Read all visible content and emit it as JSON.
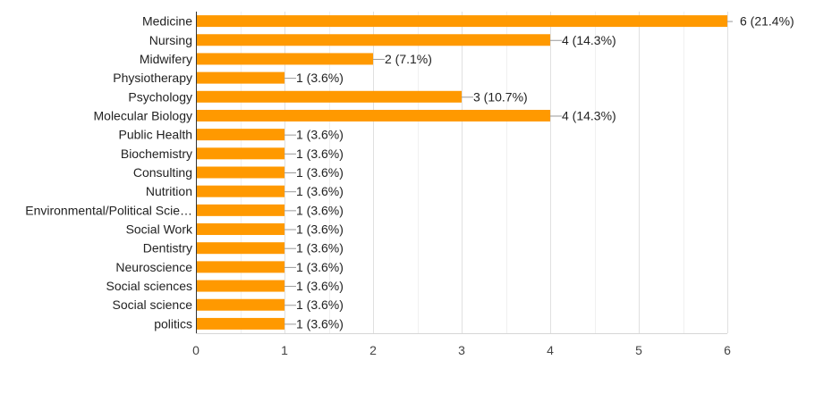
{
  "chart_data": {
    "type": "bar",
    "orientation": "horizontal",
    "categories": [
      "Medicine",
      "Nursing",
      "Midwifery",
      "Physiotherapy",
      "Psychology",
      "Molecular Biology",
      "Public Health",
      "Biochemistry",
      "Consulting",
      "Nutrition",
      "Environmental/Political Scie…",
      "Social Work",
      "Dentistry",
      "Neuroscience",
      "Social sciences",
      "Social science",
      "politics"
    ],
    "values": [
      6,
      4,
      2,
      1,
      3,
      4,
      1,
      1,
      1,
      1,
      1,
      1,
      1,
      1,
      1,
      1,
      1
    ],
    "data_labels": [
      "6 (21.4%)",
      "4 (14.3%)",
      "2 (7.1%)",
      "1 (3.6%)",
      "3 (10.7%)",
      "4 (14.3%)",
      "1 (3.6%)",
      "1 (3.6%)",
      "1 (3.6%)",
      "1 (3.6%)",
      "1 (3.6%)",
      "1 (3.6%)",
      "1 (3.6%)",
      "1 (3.6%)",
      "1 (3.6%)",
      "1 (3.6%)",
      "1 (3.6%)"
    ],
    "xlim": [
      0,
      6
    ],
    "x_ticks": [
      0,
      1,
      2,
      3,
      4,
      5,
      6
    ],
    "grid": true,
    "legend": "none",
    "bar_color": "#ff9900",
    "title": "",
    "xlabel": "",
    "ylabel": ""
  }
}
